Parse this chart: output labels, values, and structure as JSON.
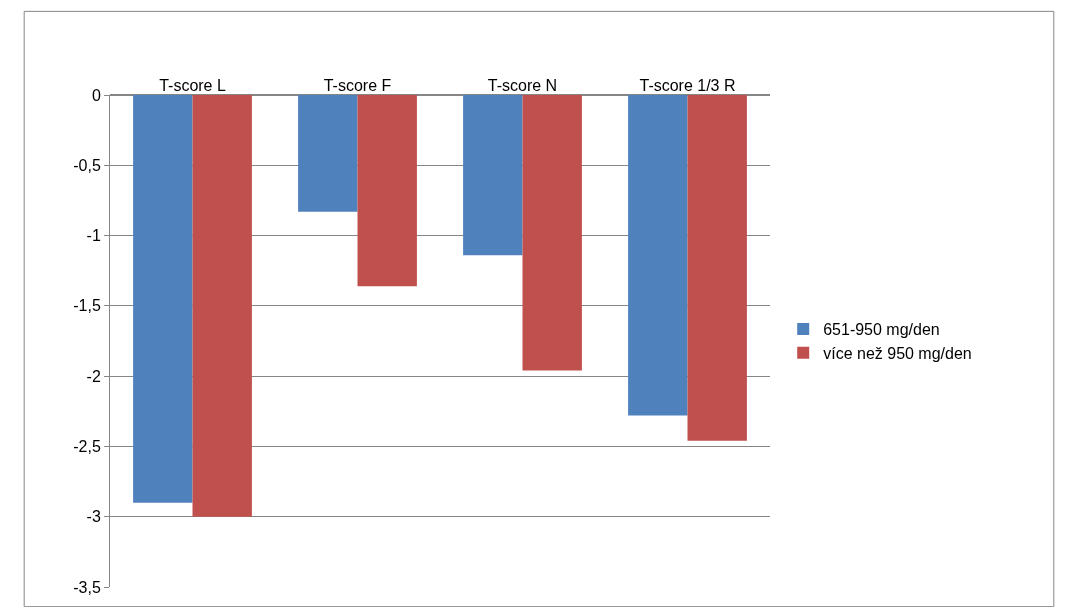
{
  "chart_data": {
    "type": "bar",
    "categories": [
      "T-score L",
      "T-score F",
      "T-score N",
      "T-score 1/3 R"
    ],
    "series": [
      {
        "name": "651-950 mg/den",
        "color": "#4f81bd",
        "values": [
          -2.9,
          -0.83,
          -1.14,
          -2.28
        ]
      },
      {
        "name": "více než 950 mg/den",
        "color": "#c0504d",
        "values": [
          -3.0,
          -1.36,
          -1.96,
          -2.46
        ]
      }
    ],
    "ylim": [
      -3.5,
      0
    ],
    "yticks": [
      {
        "value": -3.5,
        "label": "-3,5"
      },
      -3,
      {
        "value": -2.5,
        "label": "-2,5"
      },
      -2,
      {
        "value": -1.5,
        "label": "-1,5"
      },
      -1,
      {
        "value": -0.5,
        "label": "-0,5"
      },
      0
    ],
    "grid": "y",
    "legend": "right"
  }
}
